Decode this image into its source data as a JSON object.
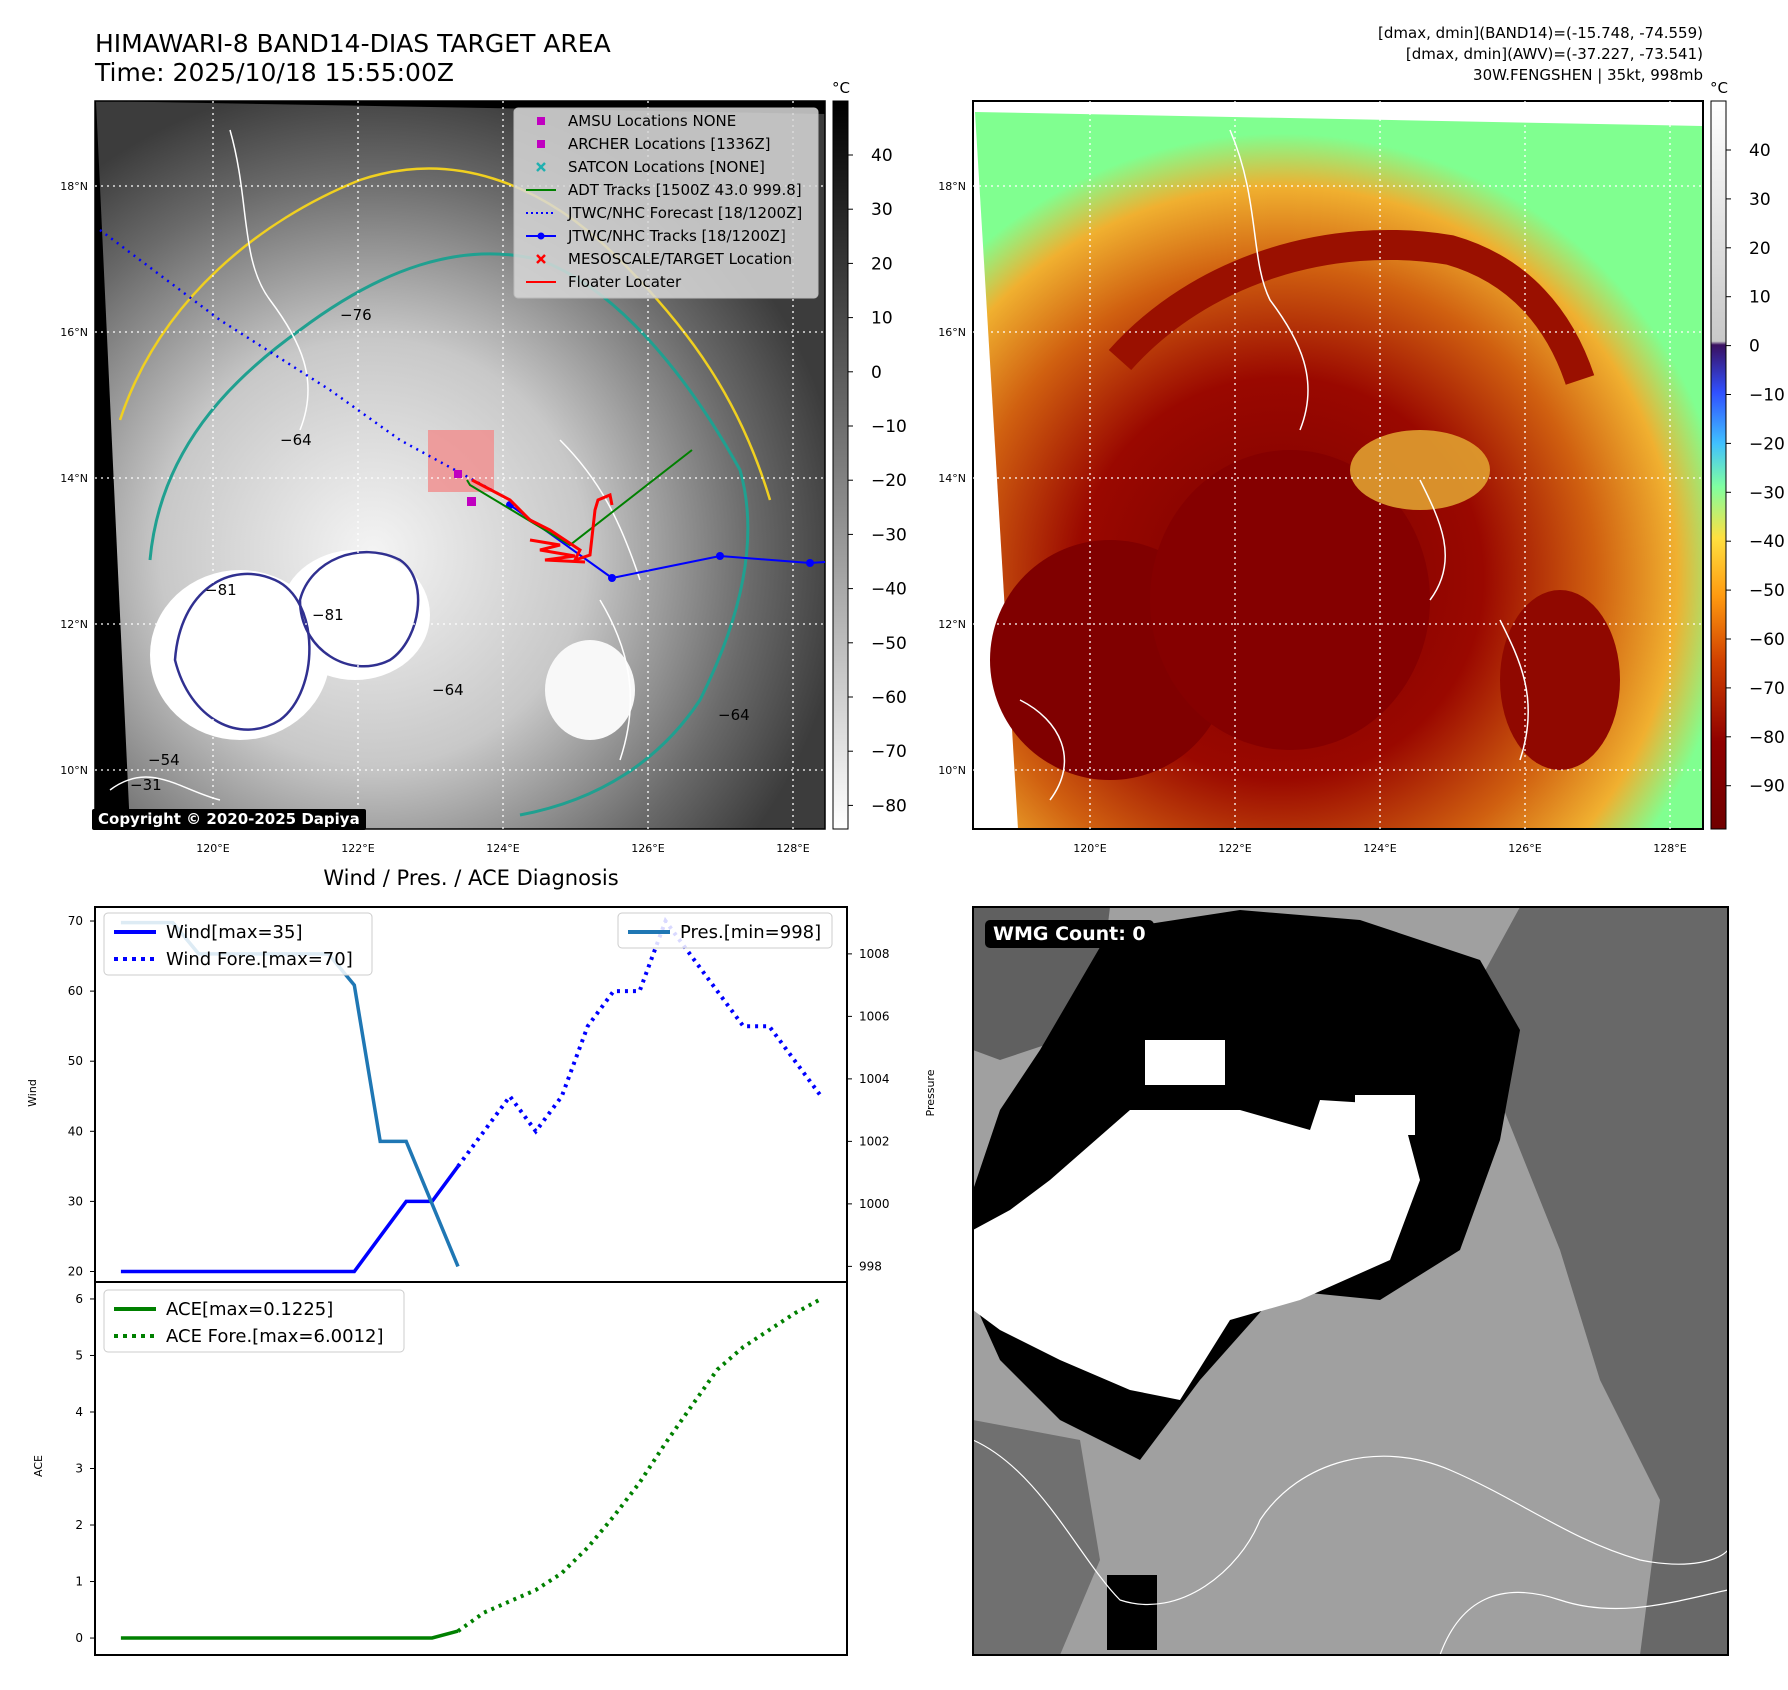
{
  "panel_ir": {
    "title": "HIMAWARI-8 BAND14-DIAS TARGET AREA",
    "time": "Time: 2025/10/18 15:55:00Z",
    "copyright": "Copyright © 2020-2025 Dapiya",
    "colorbar_unit": "°C",
    "colorbar_ticks": [
      "40",
      "30",
      "20",
      "10",
      "0",
      "−10",
      "−20",
      "−30",
      "−40",
      "−50",
      "−60",
      "−70",
      "−80"
    ],
    "lat_labels": [
      "18°N",
      "16°N",
      "14°N",
      "12°N",
      "10°N"
    ],
    "lon_labels": [
      "120°E",
      "122°E",
      "124°E",
      "126°E",
      "128°E"
    ],
    "contour_labels": [
      "−76",
      "−81",
      "−64",
      "−54",
      "−31",
      "−64",
      "−64",
      "−81"
    ],
    "legend": [
      {
        "label": "AMSU Locations NONE",
        "marker": "square",
        "color": "#c000c0"
      },
      {
        "label": "ARCHER Locations [1336Z]",
        "marker": "square",
        "color": "#c000c0"
      },
      {
        "label": "SATCON Locations [NONE]",
        "marker": "x",
        "color": "#20b0b0"
      },
      {
        "label": "ADT Tracks [1500Z 43.0 999.8]",
        "marker": "line",
        "color": "#008000"
      },
      {
        "label": "JTWC/NHC Forecast [18/1200Z]",
        "marker": "dotted",
        "color": "#0000ff"
      },
      {
        "label": "JTWC/NHC Tracks [18/1200Z]",
        "marker": "line-dot",
        "color": "#0000ff"
      },
      {
        "label": "MESOSCALE/TARGET Location",
        "marker": "x",
        "color": "#ff0000"
      },
      {
        "label": "Floater Locater",
        "marker": "line",
        "color": "#ff0000"
      }
    ]
  },
  "panel_awv": {
    "info_lines": [
      "[dmax, dmin](BAND14)=(-15.748, -74.559)",
      "[dmax, dmin](AWV)=(-37.227, -73.541)",
      "30W.FENGSHEN | 35kt, 998mb"
    ],
    "colorbar_unit": "°C",
    "colorbar_ticks": [
      "40",
      "30",
      "20",
      "10",
      "0",
      "−10",
      "−20",
      "−30",
      "−40",
      "−50",
      "−60",
      "−70",
      "−80",
      "−90"
    ],
    "lat_labels": [
      "18°N",
      "16°N",
      "14°N",
      "12°N",
      "10°N"
    ],
    "lon_labels": [
      "120°E",
      "122°E",
      "124°E",
      "126°E",
      "128°E"
    ]
  },
  "panel_wmg": {
    "label": "WMG Count: 0"
  },
  "chart_data": [
    {
      "type": "line",
      "title": "Wind / Pres. / ACE Diagnosis",
      "ylabel": "Wind",
      "ylim": [
        18.5,
        72
      ],
      "yticks": [
        "70",
        "60",
        "50",
        "40",
        "30",
        "20"
      ],
      "xlim": [
        -1,
        28
      ],
      "series": [
        {
          "name": "Wind[max=35]",
          "color": "#0000ff",
          "style": "solid",
          "x": [
            0,
            1,
            2,
            3,
            4,
            5,
            6,
            7,
            8,
            9,
            10,
            11,
            12,
            13
          ],
          "values": [
            20,
            20,
            20,
            20,
            20,
            20,
            20,
            20,
            20,
            20,
            25,
            30,
            30,
            35
          ]
        },
        {
          "name": "Wind Fore.[max=70]",
          "color": "#0000ff",
          "style": "dotted",
          "x": [
            13,
            14,
            15,
            16,
            17,
            18,
            19,
            20,
            21,
            22,
            23,
            24,
            25,
            26,
            27
          ],
          "values": [
            35,
            40,
            45,
            40,
            45,
            55,
            60,
            60,
            70,
            65,
            60,
            55,
            55,
            50,
            45
          ]
        }
      ],
      "secondary_axis": {
        "ylabel": "Pressure",
        "ylim": [
          997.5,
          1009.5
        ],
        "yticks": [
          "1008",
          "1006",
          "1004",
          "1002",
          "1000",
          "998"
        ],
        "series": [
          {
            "name": "Pres.[min=998]",
            "color": "#1f77b4",
            "style": "solid",
            "x": [
              0,
              1,
              2,
              3,
              4,
              5,
              6,
              7,
              8,
              9,
              10,
              11,
              12,
              13
            ],
            "values": [
              1009,
              1009,
              1009,
              1008,
              1008,
              1008,
              1008,
              1008,
              1008,
              1007,
              1002,
              1002,
              1000,
              998
            ]
          }
        ]
      }
    },
    {
      "type": "line",
      "ylabel": "ACE",
      "ylim": [
        -0.3,
        6.3
      ],
      "yticks": [
        "6",
        "5",
        "4",
        "3",
        "2",
        "1",
        "0"
      ],
      "xlim": [
        -1,
        28
      ],
      "series": [
        {
          "name": "ACE[max=0.1225]",
          "color": "#008000",
          "style": "solid",
          "x": [
            0,
            1,
            2,
            3,
            4,
            5,
            6,
            7,
            8,
            9,
            10,
            11,
            12,
            13
          ],
          "values": [
            0,
            0,
            0,
            0,
            0,
            0,
            0,
            0,
            0,
            0,
            0,
            0,
            0,
            0.1225
          ]
        },
        {
          "name": "ACE Fore.[max=6.0012]",
          "color": "#008000",
          "style": "dotted",
          "x": [
            13,
            14,
            15,
            16,
            17,
            18,
            19,
            20,
            21,
            22,
            23,
            24,
            25,
            26,
            27
          ],
          "values": [
            0.1225,
            0.45,
            0.65,
            0.85,
            1.15,
            1.6,
            2.15,
            2.75,
            3.45,
            4.1,
            4.75,
            5.15,
            5.45,
            5.75,
            6.0012
          ]
        }
      ]
    }
  ]
}
